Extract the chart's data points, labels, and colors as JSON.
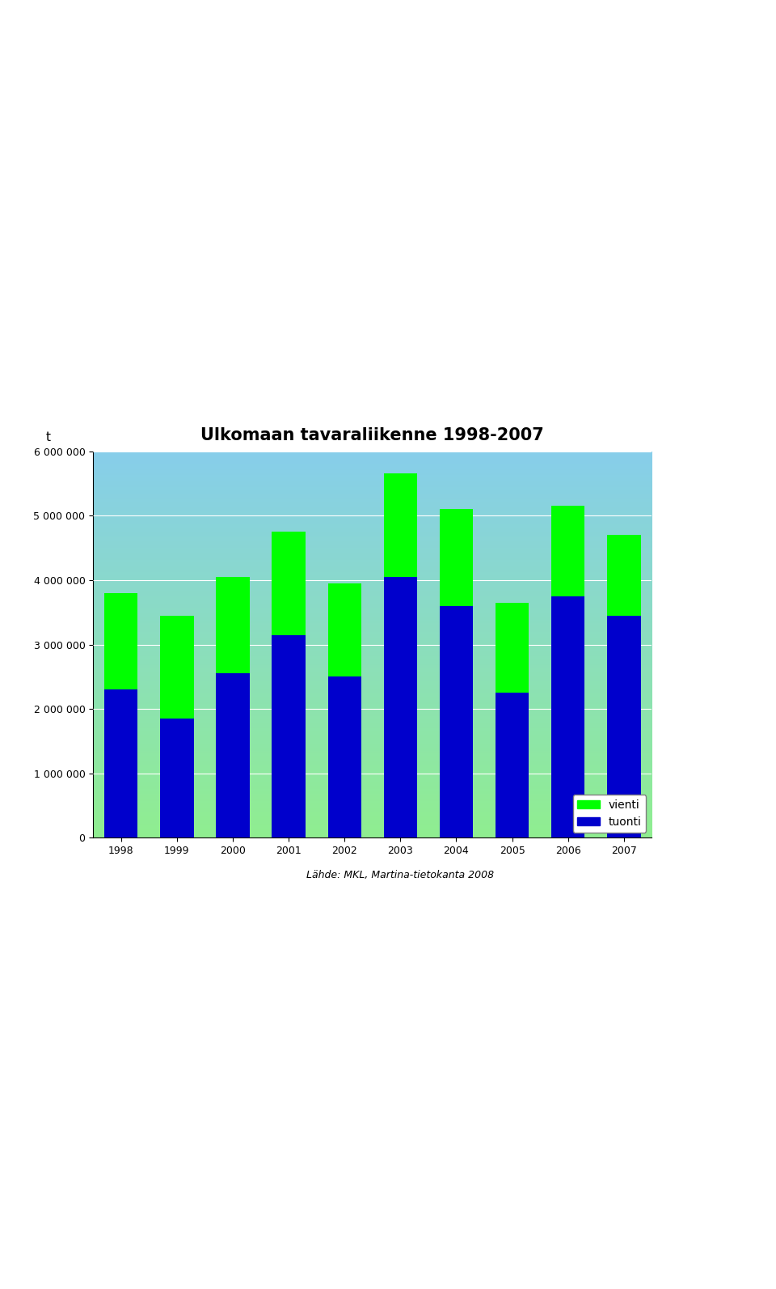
{
  "title": "Ulkomaan tavaraliikenne 1998-2007",
  "ylabel": "t",
  "years": [
    1998,
    1999,
    2000,
    2001,
    2002,
    2003,
    2004,
    2005,
    2006,
    2007
  ],
  "tuonti": [
    2300000,
    1850000,
    2550000,
    3150000,
    2500000,
    4050000,
    3600000,
    2250000,
    3750000,
    3450000
  ],
  "vienti": [
    1500000,
    1600000,
    1500000,
    1600000,
    1450000,
    1600000,
    1500000,
    1400000,
    1400000,
    1250000
  ],
  "tuonti_color": "#0000CC",
  "vienti_color": "#00FF00",
  "ylim": [
    0,
    6000000
  ],
  "yticks": [
    0,
    1000000,
    2000000,
    3000000,
    4000000,
    5000000,
    6000000
  ],
  "ytick_labels": [
    "0",
    "1 000 000",
    "2 000 000",
    "3 000 000",
    "4 000 000",
    "5 000 000",
    "6 000 000"
  ],
  "source": "Lähde: MKL, Martina-tietokanta 2008",
  "legend_vienti": "vienti",
  "legend_tuonti": "tuonti",
  "bg_top_color": "#87CEEB",
  "bg_bottom_color": "#90EE90",
  "bar_width": 0.6,
  "title_fontsize": 15,
  "tick_fontsize": 9,
  "source_fontsize": 9
}
